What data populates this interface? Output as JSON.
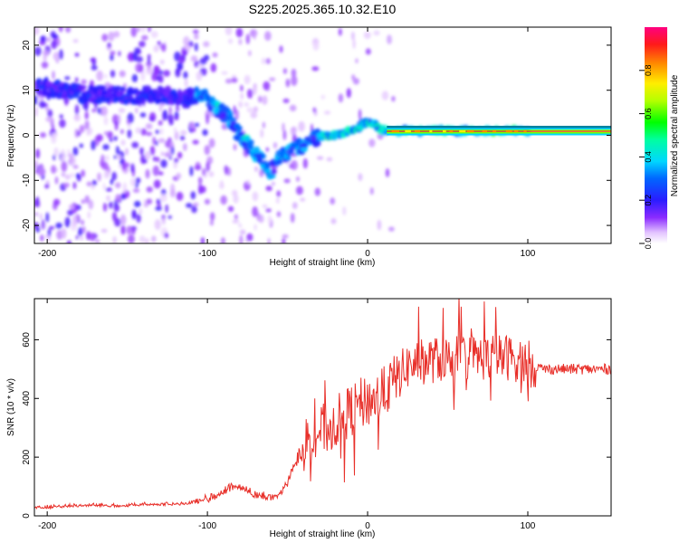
{
  "title": "S225.2025.365.10.32.E10",
  "chart_data": [
    {
      "type": "heatmap",
      "name": "spectrogram",
      "xlabel": "Height of straight line (km)",
      "ylabel": "Frequency (Hz)",
      "xlim": [
        -208,
        152
      ],
      "ylim": [
        -24,
        24
      ],
      "xticks": [
        -200,
        -100,
        0,
        100
      ],
      "yticks": [
        -20,
        -10,
        0,
        10,
        20
      ],
      "grid": false,
      "ridge": [
        {
          "x": -205,
          "y": 11
        },
        {
          "x": -190,
          "y": 10
        },
        {
          "x": -175,
          "y": 9
        },
        {
          "x": -160,
          "y": 9
        },
        {
          "x": -145,
          "y": 9
        },
        {
          "x": -130,
          "y": 9
        },
        {
          "x": -115,
          "y": 8
        },
        {
          "x": -105,
          "y": 9
        },
        {
          "x": -97,
          "y": 7
        },
        {
          "x": -90,
          "y": 5
        },
        {
          "x": -85,
          "y": 3
        },
        {
          "x": -80,
          "y": 0
        },
        {
          "x": -75,
          "y": -2
        },
        {
          "x": -70,
          "y": -4
        },
        {
          "x": -65,
          "y": -6
        },
        {
          "x": -60,
          "y": -8
        },
        {
          "x": -55,
          "y": -5
        },
        {
          "x": -50,
          "y": -4
        },
        {
          "x": -45,
          "y": -3
        },
        {
          "x": -40,
          "y": -2
        },
        {
          "x": -35,
          "y": -1
        },
        {
          "x": -30,
          "y": 0
        },
        {
          "x": -20,
          "y": 0
        },
        {
          "x": -10,
          "y": 1
        },
        {
          "x": -5,
          "y": 2
        },
        {
          "x": 0,
          "y": 3
        },
        {
          "x": 5,
          "y": 2
        },
        {
          "x": 10,
          "y": 1
        },
        {
          "x": 100,
          "y": 1
        },
        {
          "x": 152,
          "y": 1
        }
      ],
      "colorbar": {
        "label": "Normalized spectral amplitude",
        "range": [
          0,
          1
        ],
        "ticks": [
          0.0,
          0.2,
          0.4,
          0.6,
          0.8
        ],
        "tick_labels": [
          "0.0",
          "0.2",
          "0.4",
          "0.6",
          "0.8"
        ],
        "colormap": "rainbow"
      }
    },
    {
      "type": "line",
      "name": "snr",
      "xlabel": "Height of straight line (km)",
      "ylabel": "SNR (10 * v/v)",
      "xlim": [
        -208,
        152
      ],
      "ylim": [
        0,
        740
      ],
      "xticks": [
        -200,
        -100,
        0,
        100
      ],
      "yticks": [
        0,
        200,
        400,
        600
      ],
      "grid": false,
      "series": [
        {
          "name": "SNR",
          "color": "#e8302a",
          "x": [
            -208,
            -200,
            -190,
            -180,
            -170,
            -160,
            -150,
            -140,
            -130,
            -120,
            -110,
            -100,
            -95,
            -90,
            -85,
            -80,
            -75,
            -70,
            -65,
            -60,
            -55,
            -50,
            -45,
            -40,
            -35,
            -30,
            -25,
            -20,
            -15,
            -10,
            -5,
            0,
            5,
            10,
            15,
            20,
            25,
            30,
            40,
            50,
            60,
            70,
            80,
            90,
            95,
            100,
            105,
            110,
            120,
            130,
            140,
            152
          ],
          "values": [
            25,
            25,
            28,
            30,
            32,
            30,
            30,
            35,
            35,
            35,
            40,
            45,
            55,
            70,
            85,
            90,
            75,
            60,
            55,
            50,
            60,
            100,
            180,
            240,
            280,
            290,
            300,
            320,
            340,
            360,
            380,
            390,
            400,
            420,
            450,
            480,
            510,
            520,
            530,
            535,
            540,
            540,
            540,
            540,
            530,
            520,
            510,
            500,
            500,
            500,
            500,
            500
          ]
        }
      ]
    }
  ]
}
